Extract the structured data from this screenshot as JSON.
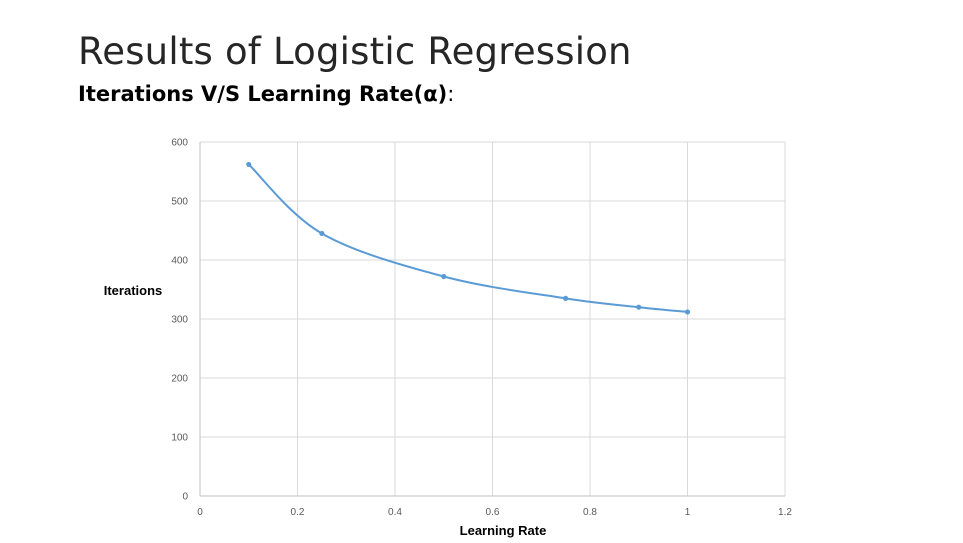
{
  "slide": {
    "title": "Results of Logistic Regression",
    "subtitle_main": "Iterations V/S Learning Rate(α)",
    "subtitle_colon": ":"
  },
  "chart_data": {
    "type": "scatter",
    "title": "",
    "xlabel": "Learning Rate",
    "ylabel": "Iterations",
    "xlim": [
      0,
      1.2
    ],
    "ylim": [
      0,
      600
    ],
    "x_ticks": [
      "0",
      "0.2",
      "0.4",
      "0.6",
      "0.8",
      "1",
      "1.2"
    ],
    "y_ticks": [
      "0",
      "100",
      "200",
      "300",
      "400",
      "500",
      "600"
    ],
    "grid": true,
    "smooth_line": true,
    "series": [
      {
        "x": [
          0.1,
          0.25,
          0.5,
          0.75,
          0.9,
          1.0
        ],
        "y": [
          562,
          445,
          372,
          335,
          320,
          312
        ]
      }
    ],
    "colors": {
      "series": "#5b9bd5",
      "grid": "#d9d9d9",
      "axis": "#bfbfbf"
    }
  }
}
